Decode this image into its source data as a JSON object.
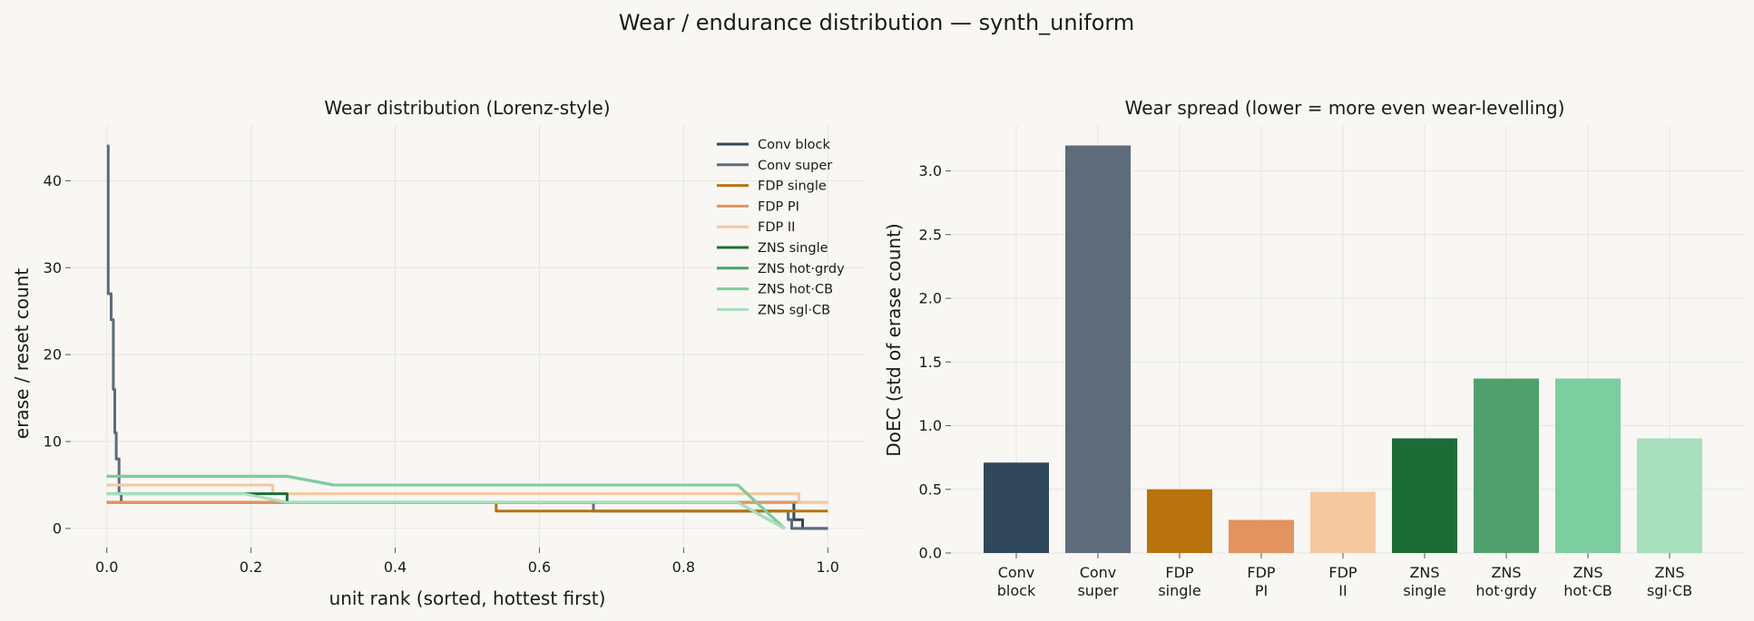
{
  "title": "Wear / endurance distribution — synth_uniform",
  "chart_data": [
    {
      "type": "line",
      "title": "Wear distribution (Lorenz-style)",
      "xlabel": "unit rank (sorted, hottest first)",
      "ylabel": "erase / reset count",
      "xlim": [
        -0.05,
        1.05
      ],
      "ylim": [
        -2.2,
        46.4
      ],
      "xticks": [
        0.0,
        0.2,
        0.4,
        0.6,
        0.8,
        1.0
      ],
      "xtick_labels": [
        "0.0",
        "0.2",
        "0.4",
        "0.6",
        "0.8",
        "1.0"
      ],
      "yticks": [
        0,
        10,
        20,
        30,
        40
      ],
      "ytick_labels": [
        "0",
        "10",
        "20",
        "30",
        "40"
      ],
      "grid": true,
      "legend": "top-right",
      "series": [
        {
          "name": "Conv block",
          "color": "#33475b",
          "x": [
            0,
            0.953,
            0.953,
            0.965,
            0.965,
            1.0
          ],
          "y": [
            3,
            3,
            1,
            1,
            0,
            0
          ]
        },
        {
          "name": "Conv super",
          "color": "#5d6b7b",
          "x": [
            0,
            0.002,
            0.002,
            0.006,
            0.006,
            0.009,
            0.009,
            0.011,
            0.011,
            0.013,
            0.013,
            0.017,
            0.017,
            0.02,
            0.02,
            0.025,
            0.025,
            0.675,
            0.675,
            0.82,
            0.82,
            0.945,
            0.945,
            0.95,
            0.95,
            1.0
          ],
          "y": [
            44,
            44,
            27,
            27,
            24,
            24,
            16,
            16,
            11,
            11,
            8,
            8,
            4,
            4,
            3,
            3,
            3,
            3,
            2,
            2,
            2,
            2,
            1,
            1,
            0,
            0
          ]
        },
        {
          "name": "FDP single",
          "color": "#b8730e",
          "x": [
            0,
            0.54,
            0.54,
            1.0
          ],
          "y": [
            3,
            3,
            2,
            2
          ]
        },
        {
          "name": "FDP PI",
          "color": "#e3935f",
          "x": [
            0,
            0.077,
            0.077,
            1.0
          ],
          "y": [
            3,
            3,
            3,
            3
          ]
        },
        {
          "name": "FDP II",
          "color": "#f5c8a0",
          "x": [
            0,
            0.23,
            0.23,
            0.96,
            0.96,
            1.0
          ],
          "y": [
            5,
            5,
            4,
            4,
            3,
            3
          ]
        },
        {
          "name": "ZNS single",
          "color": "#1d6c35",
          "x": [
            0,
            0.25,
            0.25,
            0.875,
            0.94
          ],
          "y": [
            4,
            4,
            3,
            3,
            0
          ]
        },
        {
          "name": "ZNS hot·grdy",
          "color": "#4fa06c",
          "x": [
            0,
            0.25,
            0.315,
            0.875,
            0.94
          ],
          "y": [
            6,
            6,
            5,
            5,
            0
          ]
        },
        {
          "name": "ZNS hot·CB",
          "color": "#7ccd9f",
          "x": [
            0,
            0.25,
            0.315,
            0.875,
            0.94
          ],
          "y": [
            6,
            6,
            5,
            5,
            0
          ]
        },
        {
          "name": "ZNS sgl·CB",
          "color": "#a8dfbe",
          "x": [
            0,
            0.19,
            0.25,
            0.875,
            0.94
          ],
          "y": [
            4,
            4,
            3,
            3,
            0
          ]
        }
      ]
    },
    {
      "type": "bar",
      "title": "Wear spread (lower = more even wear-levelling)",
      "xlabel": "",
      "ylabel": "DoEC (std of erase count)",
      "ylim": [
        0,
        3.36
      ],
      "yticks": [
        0.0,
        0.5,
        1.0,
        1.5,
        2.0,
        2.5,
        3.0
      ],
      "ytick_labels": [
        "0.0",
        "0.5",
        "1.0",
        "1.5",
        "2.0",
        "2.5",
        "3.0"
      ],
      "grid": true,
      "categories": [
        [
          "Conv",
          "block"
        ],
        [
          "Conv",
          "super"
        ],
        [
          "FDP",
          "single"
        ],
        [
          "FDP",
          "PI"
        ],
        [
          "FDP",
          "II"
        ],
        [
          "ZNS",
          "single"
        ],
        [
          "ZNS",
          "hot·grdy"
        ],
        [
          "ZNS",
          "hot·CB"
        ],
        [
          "ZNS",
          "sgl·CB"
        ]
      ],
      "values": [
        0.71,
        3.2,
        0.5,
        0.26,
        0.48,
        0.9,
        1.37,
        1.37,
        0.9
      ],
      "colors": [
        "#33475b",
        "#5d6b7b",
        "#b8730e",
        "#e3935f",
        "#f5c8a0",
        "#1d6c35",
        "#4fa06c",
        "#7ccd9f",
        "#a8dfbe"
      ]
    }
  ]
}
